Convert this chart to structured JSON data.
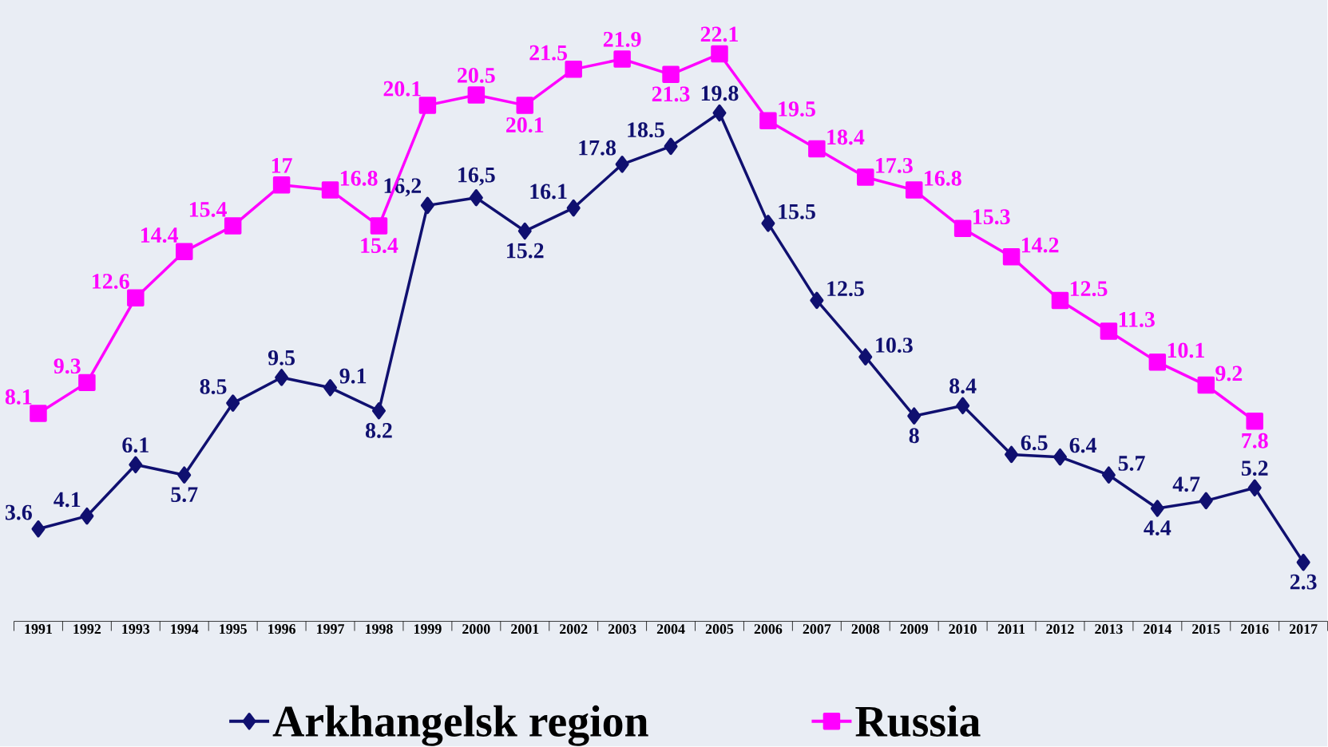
{
  "chart_data": {
    "type": "line",
    "categories": [
      "1991",
      "1992",
      "1993",
      "1994",
      "1995",
      "1996",
      "1997",
      "1998",
      "1999",
      "2000",
      "2001",
      "2002",
      "2003",
      "2004",
      "2005",
      "2006",
      "2007",
      "2008",
      "2009",
      "2010",
      "2011",
      "2012",
      "2013",
      "2014",
      "2015",
      "2016",
      "2017"
    ],
    "ylim": [
      0,
      24.2
    ],
    "legend": "bottom",
    "tick_labels": "x",
    "series": [
      {
        "name": "Arkhangelsk region",
        "color": "#101070",
        "marker": "diamond",
        "values": [
          3.6,
          4.1,
          6.1,
          5.7,
          8.5,
          9.5,
          9.1,
          8.2,
          16.2,
          16.5,
          15.2,
          16.1,
          17.8,
          18.5,
          19.8,
          15.5,
          12.5,
          10.3,
          8,
          8.4,
          6.5,
          6.4,
          5.7,
          4.4,
          4.7,
          5.2,
          2.3
        ],
        "value_labels": [
          "3.6",
          "4.1",
          "6.1",
          "5.7",
          "8.5",
          "9.5",
          "9.1",
          "8.2",
          "16,2",
          "16,5",
          "15.2",
          "16.1",
          "17.8",
          "18.5",
          "19.8",
          "15.5",
          "12.5",
          "10.3",
          "8",
          "8.4",
          "6.5",
          "6.4",
          "5.7",
          "4.4",
          "4.7",
          "5.2",
          "2.3"
        ]
      },
      {
        "name": "Russia",
        "color": "#ff00ff",
        "marker": "square",
        "values": [
          8.1,
          9.3,
          12.6,
          14.4,
          15.4,
          17,
          16.8,
          15.4,
          20.1,
          20.5,
          20.1,
          21.5,
          21.9,
          21.3,
          22.1,
          19.5,
          18.4,
          17.3,
          16.8,
          15.3,
          14.2,
          12.5,
          11.3,
          10.1,
          9.2,
          7.8,
          null
        ],
        "value_labels": [
          "8.1",
          "9.3",
          "12.6",
          "14.4",
          "15.4",
          "17",
          "16.8",
          "15.4",
          "20.1",
          "20.5",
          "20.1",
          "21.5",
          "21.9",
          "21.3",
          "22.1",
          "19.5",
          "18.4",
          "17.3",
          "16.8",
          "15.3",
          "14.2",
          "12.5",
          "11.3",
          "10.1",
          "9.2",
          "7.8",
          null
        ]
      }
    ]
  }
}
